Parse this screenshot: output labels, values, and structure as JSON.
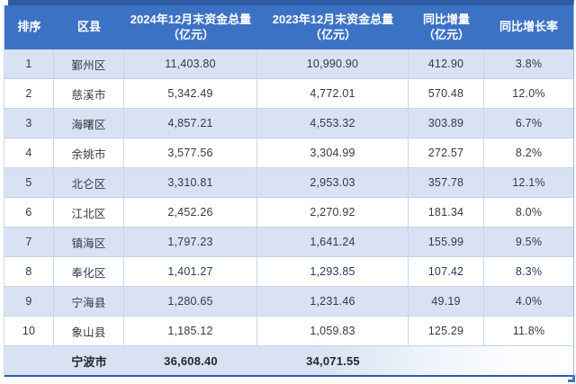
{
  "table": {
    "columns": [
      {
        "label": "排序",
        "sub": ""
      },
      {
        "label": "区县",
        "sub": ""
      },
      {
        "label": "2024年12月末资金总量",
        "sub": "（亿元）"
      },
      {
        "label": "2023年12月末资金总量",
        "sub": "（亿元）"
      },
      {
        "label": "同比增量",
        "sub": "（亿元）"
      },
      {
        "label": "同比增长率",
        "sub": ""
      }
    ],
    "rows": [
      {
        "rank": "1",
        "district": "鄞州区",
        "v2024": "11,403.80",
        "v2023": "10,990.90",
        "delta": "412.90",
        "growth": "3.8%"
      },
      {
        "rank": "2",
        "district": "慈溪市",
        "v2024": "5,342.49",
        "v2023": "4,772.01",
        "delta": "570.48",
        "growth": "12.0%"
      },
      {
        "rank": "3",
        "district": "海曙区",
        "v2024": "4,857.21",
        "v2023": "4,553.32",
        "delta": "303.89",
        "growth": "6.7%"
      },
      {
        "rank": "4",
        "district": "余姚市",
        "v2024": "3,577.56",
        "v2023": "3,304.99",
        "delta": "272.57",
        "growth": "8.2%"
      },
      {
        "rank": "5",
        "district": "北仑区",
        "v2024": "3,310.81",
        "v2023": "2,953.03",
        "delta": "357.78",
        "growth": "12.1%"
      },
      {
        "rank": "6",
        "district": "江北区",
        "v2024": "2,452.26",
        "v2023": "2,270.92",
        "delta": "181.34",
        "growth": "8.0%"
      },
      {
        "rank": "7",
        "district": "镇海区",
        "v2024": "1,797.23",
        "v2023": "1,641.24",
        "delta": "155.99",
        "growth": "9.5%"
      },
      {
        "rank": "8",
        "district": "奉化区",
        "v2024": "1,401.27",
        "v2023": "1,293.85",
        "delta": "107.42",
        "growth": "8.3%"
      },
      {
        "rank": "9",
        "district": "宁海县",
        "v2024": "1,280.65",
        "v2023": "1,231.46",
        "delta": "49.19",
        "growth": "4.0%"
      },
      {
        "rank": "10",
        "district": "象山县",
        "v2024": "1,185.12",
        "v2023": "1,059.83",
        "delta": "125.29",
        "growth": "11.8%"
      }
    ],
    "total": {
      "rank": "",
      "district": "宁波市",
      "v2024": "36,608.40",
      "v2023": "34,071.55",
      "delta": "",
      "growth": ""
    }
  },
  "colors": {
    "header_bg": "#3C72C4",
    "top_border": "#2D5CA5",
    "stripe_light": "#D9E2F3",
    "stripe_white": "#FFFFFF",
    "grid_line": "#C7D6EE",
    "handle_blue": "#4472C4"
  },
  "chart_data": {
    "type": "table",
    "title": "",
    "columns": [
      "排序",
      "区县",
      "2024年12月末资金总量（亿元）",
      "2023年12月末资金总量（亿元）",
      "同比增量（亿元）",
      "同比增长率"
    ],
    "rows": [
      [
        1,
        "鄞州区",
        11403.8,
        10990.9,
        412.9,
        "3.8%"
      ],
      [
        2,
        "慈溪市",
        5342.49,
        4772.01,
        570.48,
        "12.0%"
      ],
      [
        3,
        "海曙区",
        4857.21,
        4553.32,
        303.89,
        "6.7%"
      ],
      [
        4,
        "余姚市",
        3577.56,
        3304.99,
        272.57,
        "8.2%"
      ],
      [
        5,
        "北仑区",
        3310.81,
        2953.03,
        357.78,
        "12.1%"
      ],
      [
        6,
        "江北区",
        2452.26,
        2270.92,
        181.34,
        "8.0%"
      ],
      [
        7,
        "镇海区",
        1797.23,
        1641.24,
        155.99,
        "9.5%"
      ],
      [
        8,
        "奉化区",
        1401.27,
        1293.85,
        107.42,
        "8.3%"
      ],
      [
        9,
        "宁海县",
        1280.65,
        1231.46,
        49.19,
        "4.0%"
      ],
      [
        10,
        "象山县",
        1185.12,
        1059.83,
        125.29,
        "11.8%"
      ]
    ],
    "total_row": [
      "",
      "宁波市",
      36608.4,
      34071.55,
      null,
      null
    ]
  }
}
